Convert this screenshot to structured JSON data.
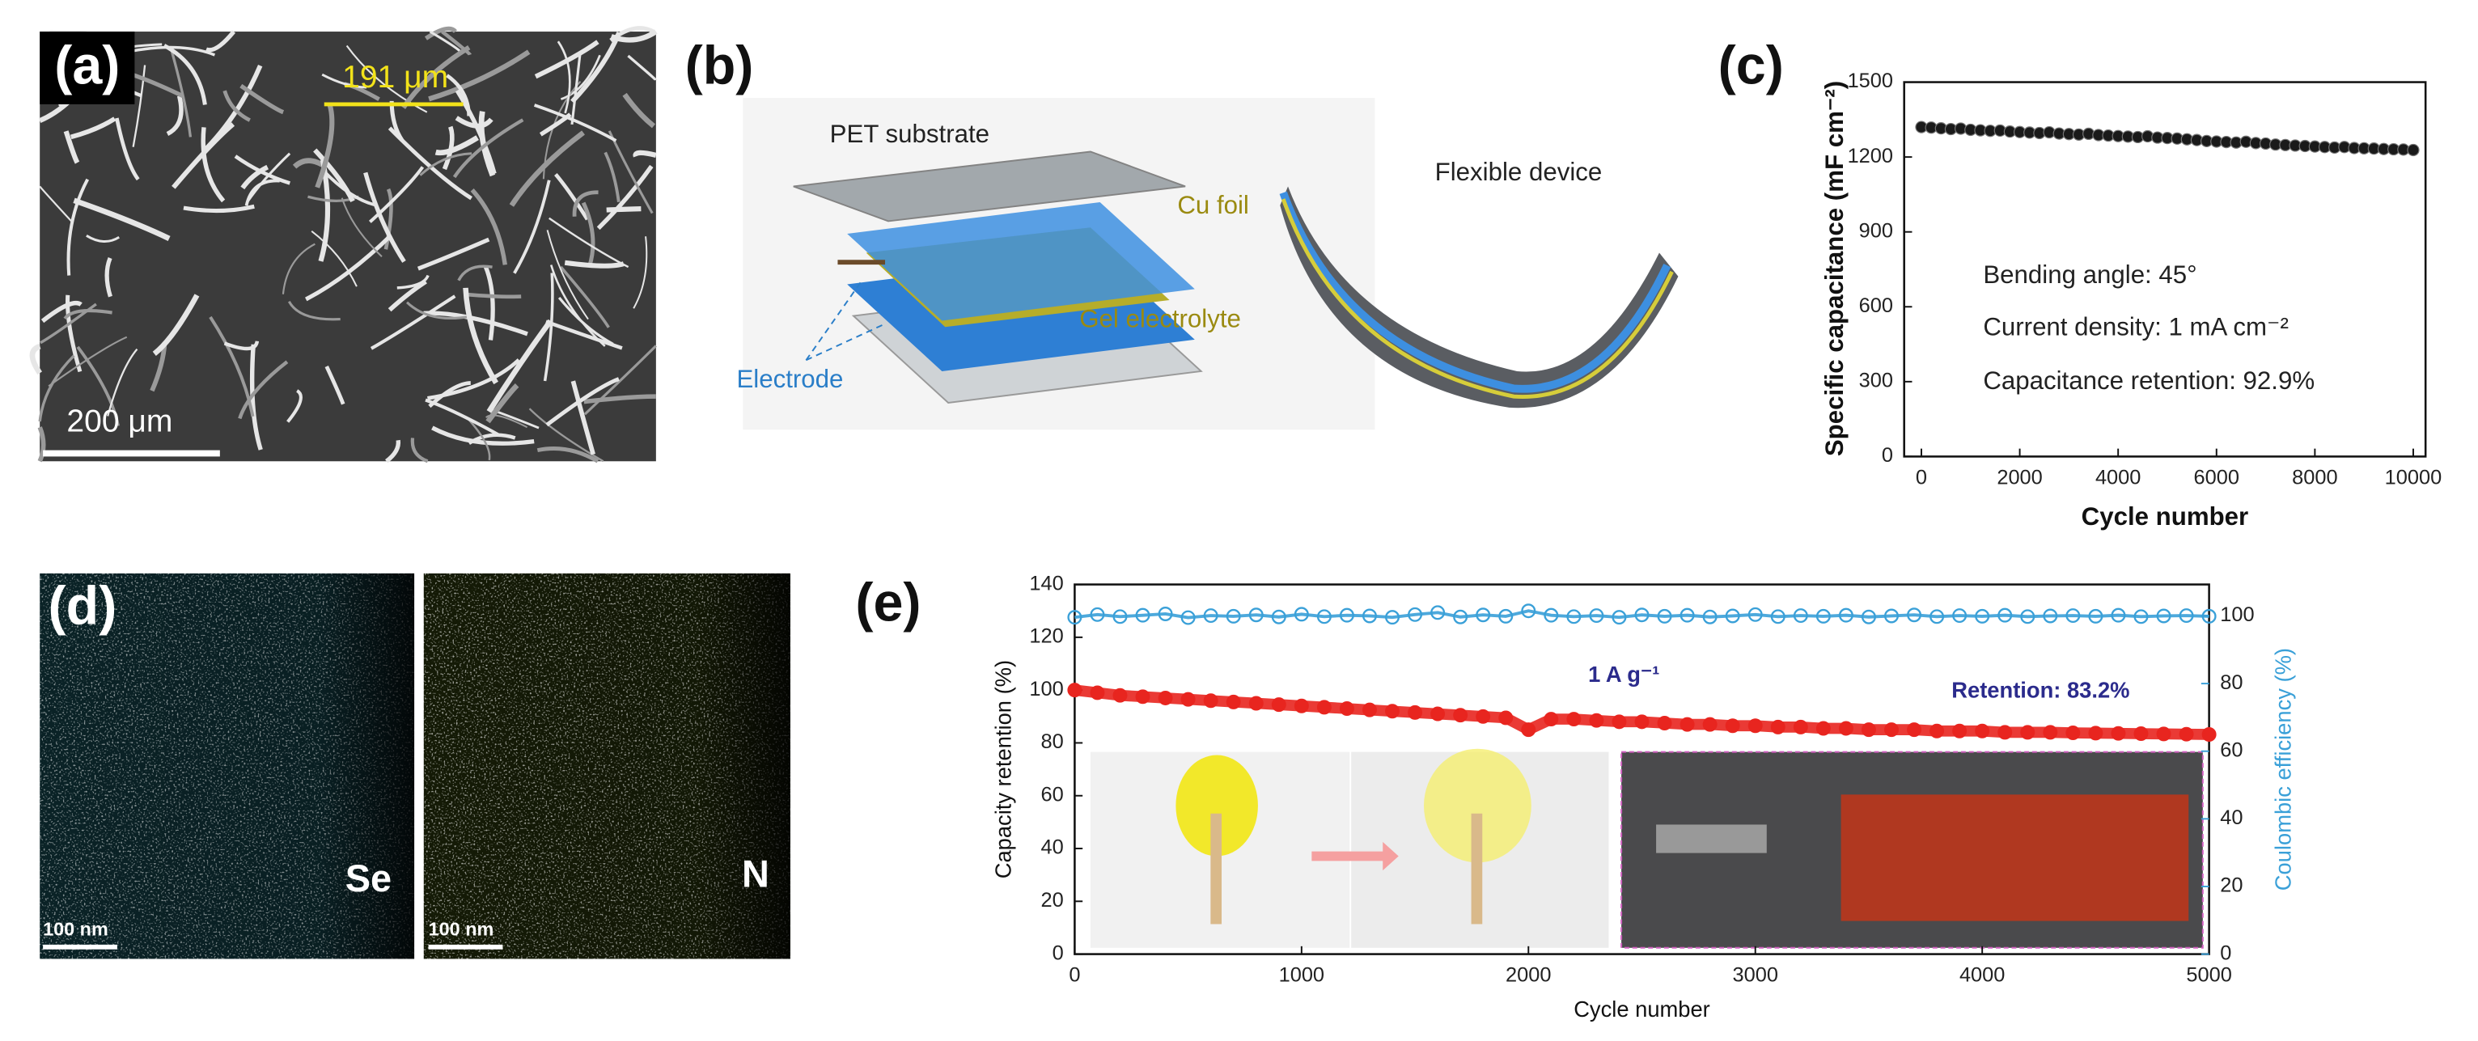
{
  "panel_labels": [
    "(a)",
    "(b)",
    "(c)",
    "(d)",
    "(e)"
  ],
  "panel_a": {
    "scale_top": "191 μm",
    "scale_bar": "200 μm"
  },
  "panel_b": {
    "layers": [
      "PET substrate",
      "Cu foil",
      "Gel electrolyte",
      "Electrode"
    ],
    "device": "Flexible device"
  },
  "panel_d": {
    "maps": [
      {
        "element": "Se",
        "scale_bar": "100 nm"
      },
      {
        "element": "N",
        "scale_bar": "100 nm"
      }
    ]
  },
  "chart_data": [
    {
      "type": "scatter",
      "xlabel": "Cycle number",
      "ylabel": "Specific capacitance (mF cm⁻²)",
      "annotations": [
        "Bending angle: 45°",
        "Current density: 1 mA cm⁻²",
        "Capacitance retention: 92.9%"
      ],
      "x": [
        0,
        200,
        400,
        600,
        800,
        1000,
        1200,
        1400,
        1600,
        1800,
        2000,
        2200,
        2400,
        2600,
        2800,
        3000,
        3200,
        3400,
        3600,
        3800,
        4000,
        4200,
        4400,
        4600,
        4800,
        5000,
        5200,
        5400,
        5600,
        5800,
        6000,
        6200,
        6400,
        6600,
        6800,
        7000,
        7200,
        7400,
        7600,
        7800,
        8000,
        8200,
        8400,
        8600,
        8800,
        9000,
        9200,
        9400,
        9600,
        9800,
        10000
      ],
      "values": [
        1320,
        1318,
        1315,
        1312,
        1314,
        1309,
        1307,
        1305,
        1306,
        1302,
        1300,
        1298,
        1296,
        1299,
        1294,
        1292,
        1290,
        1293,
        1288,
        1286,
        1284,
        1282,
        1280,
        1283,
        1278,
        1276,
        1274,
        1271,
        1268,
        1264,
        1262,
        1260,
        1258,
        1261,
        1256,
        1254,
        1250,
        1248,
        1246,
        1244,
        1242,
        1240,
        1238,
        1240,
        1236,
        1235,
        1234,
        1232,
        1231,
        1230,
        1228
      ],
      "color": "#1a1a1a",
      "xlim": [
        -350,
        10250
      ],
      "xticks": [
        0,
        2000,
        4000,
        6000,
        8000,
        10000
      ],
      "ylim": [
        0,
        1500
      ],
      "yticks": [
        0,
        300,
        600,
        900,
        1200,
        1500
      ]
    },
    {
      "type": "line",
      "xlabel": "Cycle number",
      "ylabel": "Capacity retention (%)",
      "y2label": "Coulombic efficiency (%)",
      "annotations": [
        "1 A g⁻¹",
        "Retention: 83.2%"
      ],
      "x": [
        0,
        100,
        200,
        300,
        400,
        500,
        600,
        700,
        800,
        900,
        1000,
        1100,
        1200,
        1300,
        1400,
        1500,
        1600,
        1700,
        1800,
        1900,
        2000,
        2100,
        2200,
        2300,
        2400,
        2500,
        2600,
        2700,
        2800,
        2900,
        3000,
        3100,
        3200,
        3300,
        3400,
        3500,
        3600,
        3700,
        3800,
        3900,
        4000,
        4100,
        4200,
        4300,
        4400,
        4500,
        4600,
        4700,
        4800,
        4900,
        5000
      ],
      "series": [
        {
          "color": "#e8251f",
          "values": [
            100,
            99,
            98,
            97.5,
            97,
            96.5,
            96,
            95.5,
            95,
            94.5,
            94,
            93.5,
            93,
            92.5,
            92,
            91.5,
            91,
            90.5,
            90,
            89.5,
            85,
            89,
            89,
            88.5,
            88,
            88,
            87.5,
            87,
            87,
            86.5,
            86.5,
            86,
            86,
            85.5,
            85.5,
            85,
            85,
            85,
            84.5,
            84.5,
            84.5,
            84,
            84,
            84,
            83.8,
            83.7,
            83.6,
            83.5,
            83.4,
            83.3,
            83.2
          ]
        },
        {
          "color": "#3aa0d8",
          "axis": "y2",
          "values": [
            99.6,
            100.4,
            99.8,
            100.2,
            100.6,
            99.5,
            100.1,
            99.9,
            100.3,
            99.7,
            100.5,
            99.8,
            100.2,
            100,
            99.6,
            100.4,
            101,
            99.7,
            100.3,
            99.9,
            101.5,
            100.2,
            99.8,
            100.1,
            99.6,
            100.3,
            99.9,
            100.2,
            99.7,
            100,
            100.4,
            99.8,
            100.1,
            99.9,
            100.2,
            99.7,
            100,
            100.3,
            99.8,
            100.1,
            99.9,
            100.2,
            99.8,
            100,
            100.1,
            99.9,
            100.2,
            99.8,
            100,
            100.1,
            99.9
          ]
        }
      ],
      "xlim": [
        0,
        5000
      ],
      "xticks": [
        0,
        1000,
        2000,
        3000,
        4000,
        5000
      ],
      "ylim": [
        0,
        140
      ],
      "yticks": [
        0,
        20,
        40,
        60,
        80,
        100,
        120,
        140
      ],
      "y2lim": [
        0,
        109.3
      ],
      "y2ticks": [
        0,
        20,
        40,
        60,
        80,
        100
      ]
    }
  ]
}
